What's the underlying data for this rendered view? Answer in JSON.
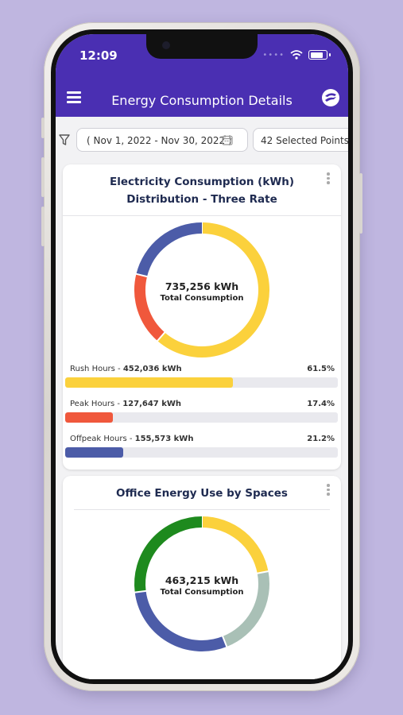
{
  "status_bar": {
    "time": "12:09"
  },
  "header": {
    "title": "Energy Consumption Details"
  },
  "filters": {
    "date_range": "( Nov 1, 2022 - Nov 30, 2022 )",
    "points": "42 Selected Points"
  },
  "colors": {
    "header": "#4a2fb2",
    "rush": "#fbd13c",
    "peak": "#f0583c",
    "offpeak": "#4c5ca8",
    "green": "#1e8a1e",
    "sage": "#a9c0b6"
  },
  "card1": {
    "title_line1": "Electricity Consumption (kWh)",
    "title_line2": "Distribution - Three Rate",
    "total_value": "735,256 kWh",
    "total_label": "Total Consumption",
    "legend": [
      {
        "name": "Rush Hours",
        "value": "452,036 kWh",
        "percent_text": "61.5%",
        "percent": 61.5,
        "color": "#fbd13c"
      },
      {
        "name": "Peak Hours",
        "value": "127,647 kWh",
        "percent_text": "17.4%",
        "percent": 17.4,
        "color": "#f0583c"
      },
      {
        "name": "Offpeak Hours",
        "value": "155,573 kWh",
        "percent_text": "21.2%",
        "percent": 21.2,
        "color": "#4c5ca8"
      }
    ]
  },
  "card2": {
    "title": "Office Energy Use by Spaces",
    "total_value": "463,215  kWh",
    "total_label": "Total Consumption",
    "segments": [
      {
        "percent": 22,
        "color": "#fbd13c"
      },
      {
        "percent": 22,
        "color": "#a9c0b6"
      },
      {
        "percent": 29,
        "color": "#4c5ca8"
      },
      {
        "percent": 27,
        "color": "#1e8a1e"
      }
    ]
  },
  "chart_data": [
    {
      "type": "pie",
      "title": "Electricity Consumption (kWh) Distribution - Three Rate",
      "categories": [
        "Rush Hours",
        "Peak Hours",
        "Offpeak Hours"
      ],
      "values": [
        452036,
        127647,
        155573
      ],
      "percents": [
        61.5,
        17.4,
        21.2
      ],
      "center_text": "735,256 kWh"
    },
    {
      "type": "pie",
      "title": "Office Energy Use by Spaces",
      "values": [
        22,
        22,
        29,
        27
      ],
      "center_text": "463,215  kWh"
    }
  ]
}
